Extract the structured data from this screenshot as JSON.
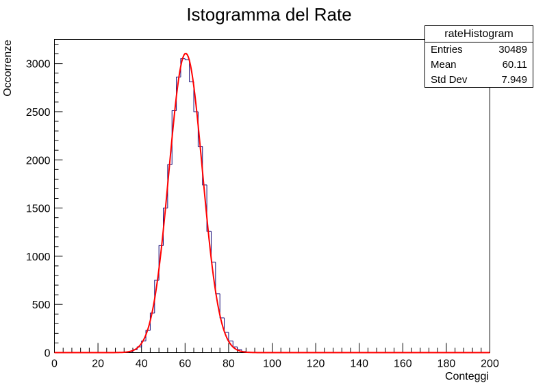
{
  "chart_data": {
    "type": "bar",
    "title": "Istogramma del Rate",
    "xlabel": "Conteggi",
    "ylabel": "Occorrenze",
    "xlim": [
      0,
      200
    ],
    "ylim": [
      0,
      3250
    ],
    "x_ticks": [
      0,
      20,
      40,
      60,
      80,
      100,
      120,
      140,
      160,
      180,
      200
    ],
    "y_ticks": [
      0,
      500,
      1000,
      1500,
      2000,
      2500,
      3000
    ],
    "grid": false,
    "histogram": {
      "name": "rateHistogram",
      "bin_width": 2,
      "bin_starts": [
        34,
        36,
        38,
        40,
        42,
        44,
        46,
        48,
        50,
        52,
        54,
        56,
        58,
        60,
        62,
        64,
        66,
        68,
        70,
        72,
        74,
        76,
        78,
        80,
        82,
        84,
        86,
        88
      ],
      "values": [
        10,
        30,
        60,
        120,
        230,
        410,
        750,
        1110,
        1500,
        1950,
        2510,
        2860,
        3050,
        3040,
        2810,
        2500,
        2140,
        1740,
        1260,
        940,
        610,
        360,
        210,
        120,
        60,
        30,
        12,
        5
      ],
      "color": "#1a0f7a"
    },
    "fit": {
      "type": "gaussian",
      "amplitude": 3105,
      "mean": 60.3,
      "sigma": 7.7,
      "color": "#ff0000"
    },
    "stats": {
      "title": "rateHistogram",
      "entries_label": "Entries",
      "entries_value": "30489",
      "mean_label": "Mean",
      "mean_value": "60.11",
      "stddev_label": "Std Dev",
      "stddev_value": "7.949"
    }
  }
}
